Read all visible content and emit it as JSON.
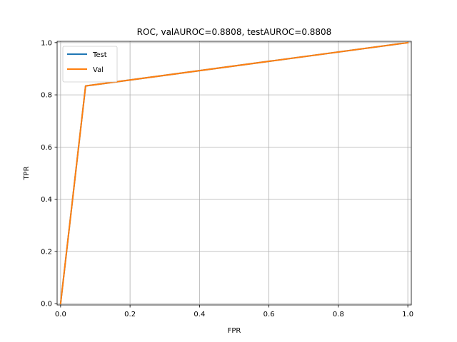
{
  "chart_data": {
    "type": "line",
    "title": "ROC, valAUROC=0.8808, testAUROC=0.8808",
    "xlabel": "FPR",
    "ylabel": "TPR",
    "xlim": [
      -0.01,
      1.01
    ],
    "ylim": [
      -0.005,
      1.005
    ],
    "xticks": [
      0.0,
      0.2,
      0.4,
      0.6,
      0.8,
      1.0
    ],
    "yticks": [
      0.0,
      0.2,
      0.4,
      0.6,
      0.8,
      1.0
    ],
    "xtick_labels": [
      "0.0",
      "0.2",
      "0.4",
      "0.6",
      "0.8",
      "1.0"
    ],
    "ytick_labels": [
      "0.0",
      "0.2",
      "0.4",
      "0.6",
      "0.8",
      "1.0"
    ],
    "grid": true,
    "legend_position": "upper-left",
    "series": [
      {
        "name": "Test",
        "color": "#1f77b4",
        "x": [
          0.0,
          0.072,
          1.0
        ],
        "y": [
          0.0,
          0.834,
          1.0
        ]
      },
      {
        "name": "Val",
        "color": "#ff7f0e",
        "x": [
          0.0,
          0.072,
          1.0
        ],
        "y": [
          0.0,
          0.834,
          1.0
        ]
      }
    ]
  }
}
